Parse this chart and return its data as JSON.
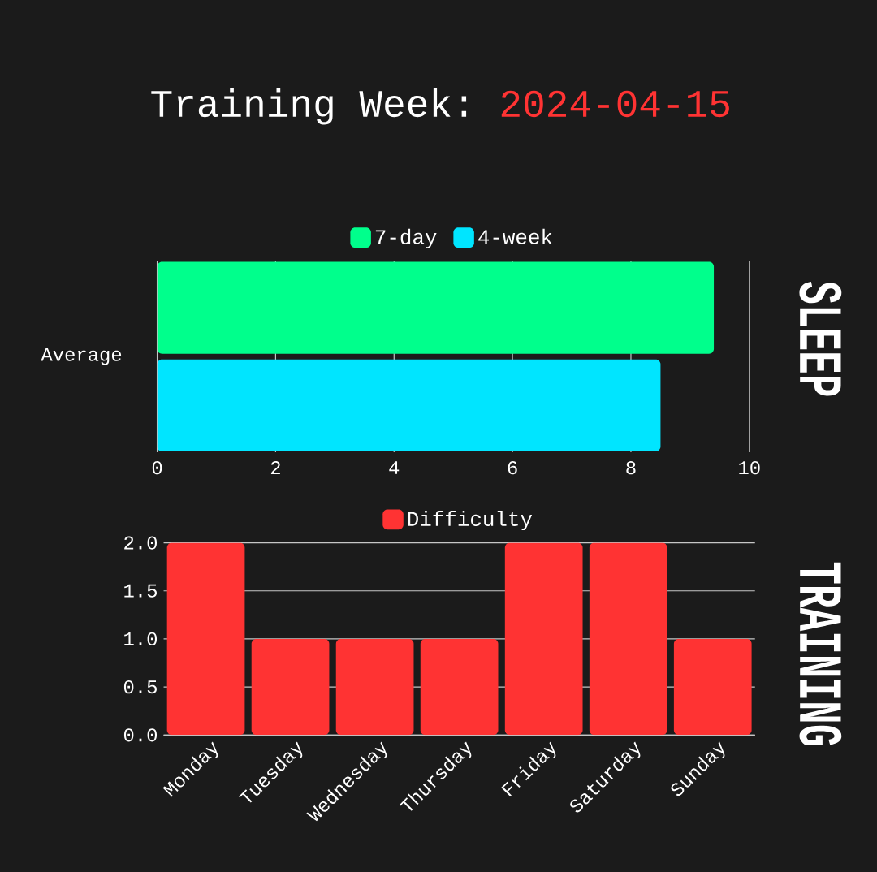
{
  "chart_data": [
    {
      "type": "bar",
      "orientation": "horizontal",
      "title": "Training Week:",
      "subtitle": "2024-04-15",
      "categories": [
        "Average"
      ],
      "series": [
        {
          "name": "7-day",
          "color": "#00ff8c",
          "values": [
            9.4
          ]
        },
        {
          "name": "4-week",
          "color": "#00e5ff",
          "values": [
            8.5
          ]
        }
      ],
      "xlim": [
        0,
        10
      ],
      "xticks": [
        0,
        2,
        4,
        6,
        8,
        10
      ],
      "grid": "x",
      "legend": "top",
      "annotations": [
        "SLEEP"
      ]
    },
    {
      "type": "bar",
      "categories": [
        "Monday",
        "Tuesday",
        "Wednesday",
        "Thursday",
        "Friday",
        "Saturday",
        "Sunday"
      ],
      "series": [
        {
          "name": "Difficulty",
          "color": "#ff3333",
          "values": [
            2,
            1,
            1,
            1,
            2,
            2,
            1
          ]
        }
      ],
      "ylim": [
        0,
        2
      ],
      "yticks": [
        {
          "value": 0,
          "label": "0.0"
        },
        {
          "value": 0.5,
          "label": "0.5"
        },
        {
          "value": 1,
          "label": "1.0"
        },
        {
          "value": 1.5,
          "label": "1.5"
        },
        {
          "value": 2,
          "label": "2.0"
        }
      ],
      "grid": "y",
      "legend": "top",
      "annotations": [
        "TRAINING"
      ]
    }
  ]
}
